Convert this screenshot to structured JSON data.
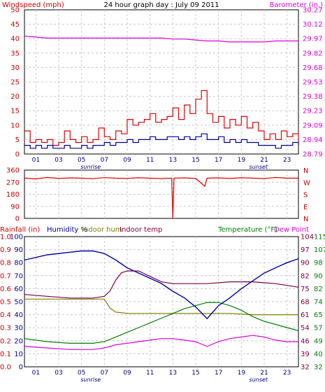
{
  "colors": {
    "wind": "#e00000",
    "gust_axis": "#cc0000",
    "baro": "#dd00dd",
    "humidity": "#0000aa",
    "indoor_hum": "#808000",
    "indoor_temp": "#800040",
    "temperature": "#008000",
    "dew": "#dd00dd",
    "rain": "#cc0000",
    "grid": "#c8c8c8",
    "axis": "#000000"
  },
  "chart_data": [
    {
      "type": "line",
      "title": "24 hour graph day : July 09 2011",
      "ylabel_left": "Windspeed (mph)",
      "ylabel_right": "Barometer (in.)",
      "ylim_left": [
        0,
        50
      ],
      "yticks_left": [
        0,
        5,
        10,
        15,
        20,
        25,
        30,
        35,
        40,
        45,
        50
      ],
      "ylim_right": [
        28.79,
        30.27
      ],
      "yticks_right": [
        "28.79",
        "28.94",
        "29.09",
        "29.23",
        "29.38",
        "29.53",
        "29.68",
        "29.82",
        "29.97",
        "30.12",
        "30.27"
      ],
      "xlim": [
        0,
        24
      ],
      "xticks": [
        "01",
        "03",
        "05",
        "07",
        "09",
        "11",
        "13",
        "15",
        "17",
        "19",
        "21",
        "23"
      ],
      "xtick_values": [
        1,
        3,
        5,
        7,
        9,
        11,
        13,
        15,
        17,
        19,
        21,
        23
      ],
      "sunrise_label": "sunrise",
      "sunrise_hour": 5.8,
      "sunset_label": "sunset",
      "sunset_hour": 20.5,
      "series": [
        {
          "axis": "right",
          "hours": [
            0,
            1,
            2,
            3,
            4,
            5,
            6,
            7,
            8,
            9,
            10,
            11,
            12,
            13,
            14,
            15,
            16,
            17,
            18,
            19,
            20,
            21,
            22,
            23,
            24
          ],
          "values": [
            30.0,
            29.99,
            29.98,
            29.98,
            29.98,
            29.98,
            29.98,
            29.98,
            29.98,
            29.98,
            29.98,
            29.98,
            29.98,
            29.97,
            29.97,
            29.96,
            29.95,
            29.95,
            29.94,
            29.94,
            29.94,
            29.94,
            29.95,
            29.95,
            29.95
          ]
        },
        {
          "axis": "left",
          "hours": [
            0,
            0.5,
            1,
            1.5,
            2,
            2.5,
            3,
            3.5,
            4,
            4.5,
            5,
            5.5,
            6,
            6.5,
            7,
            7.5,
            8,
            8.5,
            9,
            9.5,
            10,
            10.5,
            11,
            11.5,
            12,
            12.5,
            13,
            13.5,
            14,
            14.5,
            15,
            15.5,
            16,
            16.5,
            17,
            17.5,
            18,
            18.5,
            19,
            19.5,
            20,
            20.5,
            21,
            21.5,
            22,
            22.5,
            23,
            23.5,
            24
          ],
          "values": [
            8,
            4,
            5,
            4,
            5,
            3,
            4,
            8,
            5,
            4,
            6,
            4,
            5,
            9,
            6,
            5,
            8,
            7,
            12,
            10,
            11,
            12,
            14,
            11,
            12,
            13,
            16,
            12,
            17,
            14,
            19,
            22,
            14,
            11,
            13,
            9,
            12,
            10,
            13,
            9,
            11,
            8,
            5,
            7,
            5,
            8,
            6,
            7,
            4
          ]
        },
        {
          "axis": "left",
          "hours": [
            0,
            0.5,
            1,
            1.5,
            2,
            2.5,
            3,
            3.5,
            4,
            4.5,
            5,
            5.5,
            6,
            6.5,
            7,
            7.5,
            8,
            8.5,
            9,
            9.5,
            10,
            10.5,
            11,
            11.5,
            12,
            12.5,
            13,
            13.5,
            14,
            14.5,
            15,
            15.5,
            16,
            16.5,
            17,
            17.5,
            18,
            18.5,
            19,
            19.5,
            20,
            20.5,
            21,
            21.5,
            22,
            22.5,
            23,
            23.5,
            24
          ],
          "values": [
            3,
            2,
            3,
            2,
            3,
            2,
            2,
            3,
            2,
            2,
            3,
            2,
            3,
            3,
            4,
            3,
            4,
            4,
            5,
            4,
            5,
            5,
            6,
            5,
            5,
            6,
            6,
            5,
            6,
            5,
            6,
            7,
            5,
            5,
            6,
            4,
            5,
            4,
            5,
            4,
            4,
            3,
            3,
            3,
            2,
            3,
            3,
            4,
            3
          ]
        }
      ]
    },
    {
      "type": "line",
      "ylim": [
        0,
        360
      ],
      "yticks": [
        0,
        90,
        180,
        270,
        360
      ],
      "compass_labels": [
        "N",
        "W",
        "S",
        "E",
        "N"
      ],
      "xlim": [
        0,
        24
      ],
      "series": [
        {
          "hours": [
            0,
            1,
            2,
            3,
            4,
            5,
            6,
            7,
            8,
            9,
            10,
            11,
            12,
            12.9,
            13,
            13.1,
            14,
            15,
            15.8,
            16,
            17,
            18,
            19,
            20,
            21,
            22,
            23,
            24
          ],
          "values": [
            300,
            295,
            305,
            298,
            302,
            300,
            296,
            304,
            300,
            298,
            303,
            300,
            297,
            300,
            0,
            300,
            302,
            298,
            240,
            300,
            302,
            298,
            303,
            300,
            297,
            305,
            300,
            300
          ]
        }
      ]
    },
    {
      "type": "line",
      "ylabels": [
        "Rainfall (in)",
        "Humidity %",
        "Indoor hum",
        "Indoor temp",
        "Temperature (°F)",
        "Dew Point"
      ],
      "ylim_rain": [
        0,
        1
      ],
      "yticks_rain": [
        "0.0",
        "0.1",
        "0.2",
        "0.3",
        "0.4",
        "0.5",
        "0.6",
        "0.7",
        "0.8",
        "0.9",
        "1.0"
      ],
      "ylim_hum": [
        0,
        100
      ],
      "yticks_hum": [
        "0",
        "10",
        "20",
        "30",
        "40",
        "50",
        "60",
        "70",
        "80",
        "90",
        "100"
      ],
      "ylim_temp_in": [
        32,
        104
      ],
      "yticks_temp_in": [
        "32",
        "39",
        "46",
        "54",
        "61",
        "68",
        "75",
        "82",
        "90",
        "97",
        "104"
      ],
      "ylim_temp_out": [
        32,
        115
      ],
      "yticks_temp_out": [
        "32",
        "40",
        "49",
        "57",
        "65",
        "74",
        "82",
        "90",
        "98",
        "107",
        "115"
      ],
      "xlim": [
        0,
        24
      ],
      "xticks": [
        "01",
        "03",
        "05",
        "07",
        "09",
        "11",
        "13",
        "15",
        "17",
        "19",
        "21",
        "23"
      ],
      "sunrise_label": "sunrise",
      "sunset_label": "sunset",
      "series": [
        {
          "name": "Humidity %",
          "hours": [
            0,
            2,
            4,
            5,
            6,
            7,
            8,
            9,
            10,
            11,
            12,
            13,
            14,
            15,
            16,
            16.5,
            17,
            18,
            19,
            20,
            21,
            22,
            23,
            24
          ],
          "values": [
            82,
            86,
            88,
            89,
            89,
            87,
            82,
            76,
            72,
            68,
            64,
            58,
            53,
            46,
            37,
            42,
            47,
            53,
            60,
            66,
            72,
            76,
            80,
            83
          ]
        },
        {
          "name": "Indoor hum",
          "hours": [
            0,
            2,
            4,
            6,
            7,
            7.5,
            8,
            9,
            10,
            12,
            14,
            16,
            18,
            20,
            22,
            24
          ],
          "values": [
            52,
            52,
            52,
            52,
            52,
            45,
            42,
            41,
            41,
            41,
            41,
            41,
            41,
            40,
            40,
            40
          ]
        },
        {
          "name": "Indoor temp",
          "hours": [
            0,
            2,
            4,
            6,
            7,
            7.5,
            8,
            8.5,
            9,
            10,
            11,
            12,
            13,
            14,
            16,
            18,
            20,
            22,
            24
          ],
          "values": [
            72,
            71,
            70,
            70,
            71,
            74,
            80,
            84,
            85,
            85,
            82,
            79,
            78,
            78,
            78,
            79,
            79,
            78,
            76
          ]
        },
        {
          "name": "Temperature (°F)",
          "hours": [
            0,
            2,
            4,
            6,
            7,
            8,
            9,
            10,
            11,
            12,
            13,
            14,
            15,
            16,
            17,
            18,
            19,
            20,
            21,
            22,
            23,
            24
          ],
          "values": [
            50,
            48,
            47,
            47,
            48,
            51,
            54,
            57,
            60,
            63,
            66,
            69,
            71,
            73,
            73,
            71,
            68,
            64,
            61,
            59,
            57,
            55
          ]
        },
        {
          "name": "Dew Point",
          "hours": [
            0,
            2,
            4,
            6,
            7,
            8,
            9,
            10,
            11,
            12,
            13,
            14,
            15,
            16,
            17,
            18,
            19,
            20,
            21,
            22,
            23,
            24
          ],
          "values": [
            45,
            44,
            43,
            43,
            44,
            46,
            47,
            48,
            49,
            50,
            50,
            49,
            48,
            45,
            48,
            50,
            51,
            52,
            51,
            49,
            48,
            48
          ]
        }
      ]
    }
  ]
}
